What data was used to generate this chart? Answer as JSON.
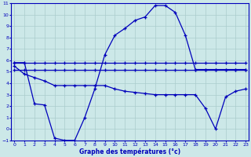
{
  "xlabel": "Graphe des températures (°c)",
  "background_color": "#cce8e8",
  "grid_color": "#aacccc",
  "line_color": "#0000bb",
  "xlim": [
    0,
    23
  ],
  "ylim": [
    -1,
    11
  ],
  "yticks": [
    -1,
    0,
    1,
    2,
    3,
    4,
    5,
    6,
    7,
    8,
    9,
    10,
    11
  ],
  "xticks": [
    0,
    1,
    2,
    3,
    4,
    5,
    6,
    7,
    8,
    9,
    10,
    11,
    12,
    13,
    14,
    15,
    16,
    17,
    18,
    19,
    20,
    21,
    22,
    23
  ],
  "line1_x": [
    0,
    1,
    2,
    3,
    4,
    5,
    6,
    7,
    8,
    9,
    10,
    11,
    12,
    13,
    14,
    15,
    16,
    17,
    18,
    19,
    20,
    21,
    22,
    23
  ],
  "line1_y": [
    5.8,
    5.8,
    5.8,
    5.8,
    5.8,
    5.8,
    5.8,
    5.8,
    5.8,
    5.8,
    5.8,
    5.8,
    5.8,
    5.8,
    5.8,
    5.8,
    5.8,
    5.8,
    5.8,
    5.8,
    5.8,
    5.8,
    5.8,
    5.8
  ],
  "line2_x": [
    0,
    1,
    2,
    3,
    4,
    5,
    6,
    7,
    8,
    9,
    10,
    11,
    12,
    13,
    14,
    15,
    16,
    17,
    18,
    19,
    20,
    21,
    22,
    23
  ],
  "line2_y": [
    5.2,
    5.2,
    5.2,
    5.2,
    5.2,
    5.2,
    5.2,
    5.2,
    5.2,
    5.2,
    5.2,
    5.2,
    5.2,
    5.2,
    5.2,
    5.2,
    5.2,
    5.2,
    5.2,
    5.2,
    5.2,
    5.2,
    5.2,
    5.2
  ],
  "line3_x": [
    0,
    1,
    2,
    3,
    4,
    5,
    6,
    7,
    8,
    9,
    10,
    11,
    12,
    13,
    14,
    15,
    16,
    17,
    18,
    19,
    20,
    21,
    22,
    23
  ],
  "line3_y": [
    5.8,
    5.8,
    2.2,
    2.1,
    -0.8,
    -1.0,
    -1.0,
    1.0,
    3.5,
    6.5,
    8.2,
    8.8,
    9.5,
    9.8,
    10.8,
    10.8,
    10.2,
    8.2,
    5.2,
    5.2,
    5.2,
    5.2,
    5.2,
    5.2
  ],
  "line4_x": [
    0,
    1,
    2,
    3,
    4,
    5,
    6,
    7,
    8,
    9,
    10,
    11,
    12,
    13,
    14,
    15,
    16,
    17,
    18,
    19,
    20,
    21,
    22,
    23
  ],
  "line4_y": [
    5.5,
    4.8,
    4.5,
    4.2,
    3.8,
    3.8,
    3.8,
    3.8,
    3.8,
    3.8,
    3.5,
    3.3,
    3.2,
    3.1,
    3.0,
    3.0,
    3.0,
    3.0,
    3.0,
    1.8,
    0.0,
    2.8,
    3.3,
    3.5
  ]
}
